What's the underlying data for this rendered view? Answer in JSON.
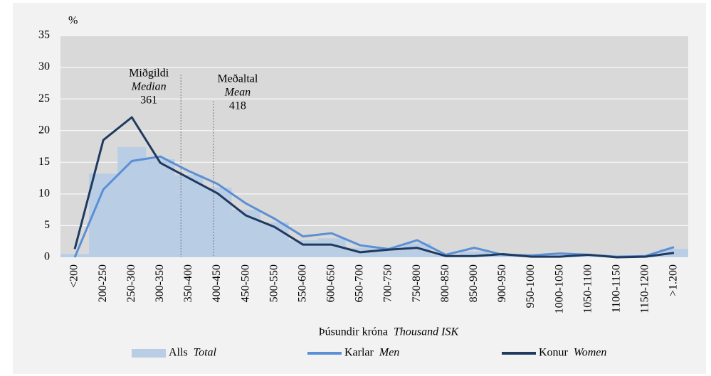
{
  "chart_data": {
    "type": "bar_line",
    "y_unit": "%",
    "x_label": "Þúsundir króna",
    "x_label_en": "Thousand ISK",
    "categories": [
      "<200",
      "200-250",
      "250-300",
      "300-350",
      "350-400",
      "400-450",
      "450-500",
      "500-550",
      "550-600",
      "600-650",
      "650-700",
      "700-750",
      "750-800",
      "800-850",
      "850-900",
      "900-950",
      "950-1000",
      "1000-1050",
      "1050-1100",
      "1100-1150",
      "1150-1200",
      ">1.200"
    ],
    "series": [
      {
        "name": "Alls",
        "name_en": "Total",
        "kind": "bar",
        "color": "#b9cde5",
        "values": [
          0.5,
          13.2,
          17.4,
          15.5,
          13,
          11,
          7.5,
          5.5,
          2.7,
          3,
          1.5,
          1.3,
          2.2,
          0.4,
          0.9,
          0.5,
          0.2,
          0.4,
          0.4,
          0.1,
          0.1,
          1.3
        ]
      },
      {
        "name": "Karlar",
        "name_en": "Men",
        "kind": "line",
        "color": "#5b8fd6",
        "values": [
          0,
          10.7,
          15.2,
          15.9,
          13.6,
          11.6,
          8.5,
          6.1,
          3.3,
          3.8,
          1.9,
          1.3,
          2.7,
          0.4,
          1.5,
          0.4,
          0.3,
          0.6,
          0.4,
          0.1,
          0.2,
          1.6
        ]
      },
      {
        "name": "Konur",
        "name_en": "Women",
        "kind": "line",
        "color": "#1f3a5f",
        "values": [
          1.3,
          18.5,
          22.1,
          14.9,
          12.5,
          10.1,
          6.6,
          4.8,
          2.0,
          2.0,
          0.8,
          1.2,
          1.5,
          0.2,
          0.2,
          0.5,
          0.1,
          0.1,
          0.4,
          0.0,
          0.1,
          0.7
        ]
      }
    ],
    "annotations": [
      {
        "label": "Miðgildi",
        "label_en": "Median",
        "value": 361
      },
      {
        "label": "Meðaltal",
        "label_en": "Mean",
        "value": 418
      }
    ],
    "ylim": [
      0,
      35
    ],
    "yticks": [
      0,
      5,
      10,
      15,
      20,
      25,
      30,
      35
    ],
    "grid": true
  }
}
